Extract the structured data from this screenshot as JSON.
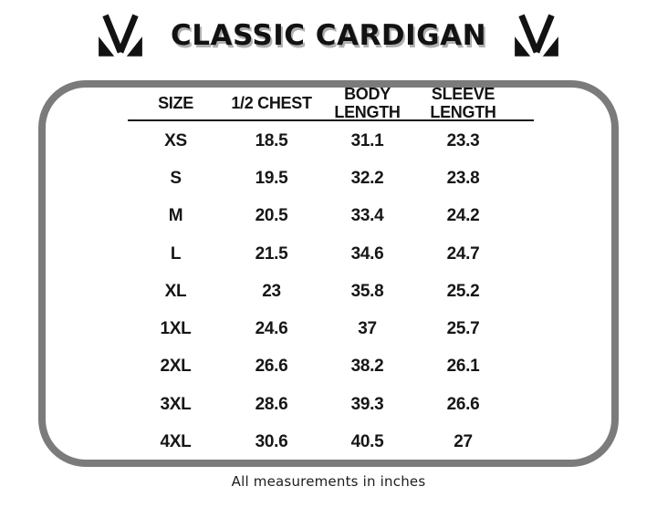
{
  "header": {
    "title": "CLASSIC CARDIGAN",
    "logo_icon": "m-monogram-icon",
    "title_color": "#121212",
    "title_shadow_color": "#b0b0b0"
  },
  "size_card": {
    "border_color": "#7b7b7b",
    "background": "#ffffff"
  },
  "chart_data": {
    "type": "table",
    "title": "CLASSIC CARDIGAN",
    "columns": [
      "SIZE",
      "1/2 CHEST",
      "BODY LENGTH",
      "SLEEVE LENGTH"
    ],
    "header_lines": [
      [
        "SIZE"
      ],
      [
        "1/2 CHEST"
      ],
      [
        "BODY",
        "LENGTH"
      ],
      [
        "SLEEVE",
        "LENGTH"
      ]
    ],
    "rows": [
      [
        "XS",
        "18.5",
        "31.1",
        "23.3"
      ],
      [
        "S",
        "19.5",
        "32.2",
        "23.8"
      ],
      [
        "M",
        "20.5",
        "33.4",
        "24.2"
      ],
      [
        "L",
        "21.5",
        "34.6",
        "24.7"
      ],
      [
        "XL",
        "23",
        "35.8",
        "25.2"
      ],
      [
        "1XL",
        "24.6",
        "37",
        "25.7"
      ],
      [
        "2XL",
        "26.6",
        "38.2",
        "26.1"
      ],
      [
        "3XL",
        "28.6",
        "39.3",
        "26.6"
      ],
      [
        "4XL",
        "30.6",
        "40.5",
        "27"
      ]
    ],
    "note": "All measurements in inches"
  },
  "footer": {
    "note": "All measurements in inches"
  }
}
